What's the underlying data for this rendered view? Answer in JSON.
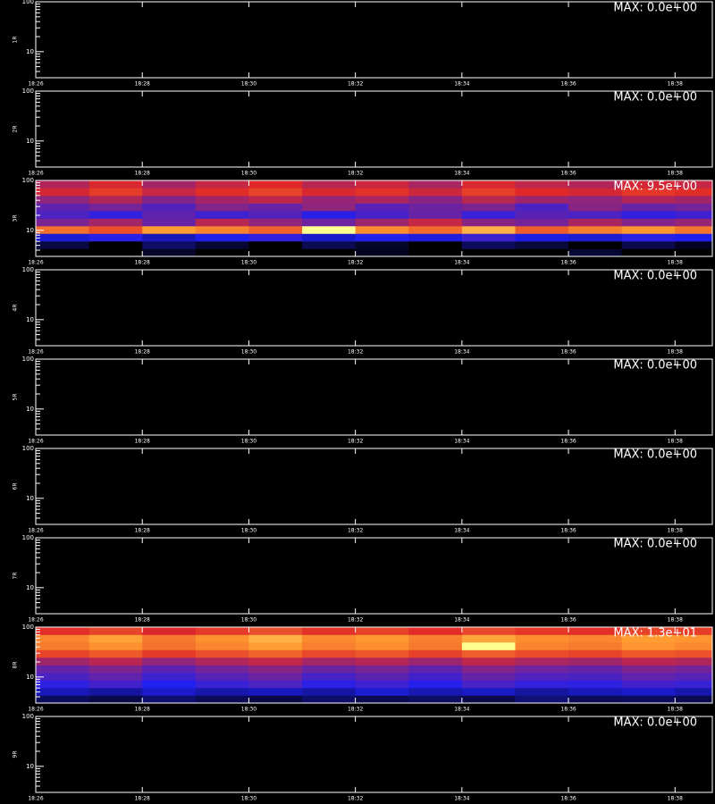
{
  "chart_data": {
    "type": "heatmap",
    "xlim": [
      1106,
      1118.7
    ],
    "xticks": [
      {
        "value": 1106,
        "label": "18:26"
      },
      {
        "value": 1108,
        "label": "18:28"
      },
      {
        "value": 1110,
        "label": "18:30"
      },
      {
        "value": 1112,
        "label": "18:32"
      },
      {
        "value": 1114,
        "label": "18:34"
      },
      {
        "value": 1116,
        "label": "18:36"
      },
      {
        "value": 1118,
        "label": "18:38"
      }
    ],
    "ylim": [
      3,
      100
    ],
    "log_y": true,
    "yticks": [
      10,
      100
    ],
    "yminorticks": [
      3,
      4,
      5,
      6,
      7,
      8,
      9,
      20,
      30,
      40,
      50,
      60,
      70,
      80,
      90
    ],
    "xbins": [
      1106,
      1107,
      1108,
      1109,
      1110,
      1111,
      1112,
      1113,
      1114,
      1115,
      1116,
      1117,
      1118,
      1118.7
    ],
    "ybins": [
      3,
      4.26,
      6.05,
      8.6,
      12.2,
      17.3,
      24.6,
      34.9,
      49.6,
      70.4,
      100
    ],
    "colorscale": [
      [
        0,
        "#000000"
      ],
      [
        0.3,
        "#2020f0"
      ],
      [
        0.6,
        "#e02828"
      ],
      [
        0.85,
        "#ff9a30"
      ],
      [
        1,
        "#ffff90"
      ]
    ],
    "panels": [
      {
        "ylabel": "1R",
        "annotation": "MAX: 0.0e+00",
        "zmax": 0,
        "z": null
      },
      {
        "ylabel": "2R",
        "annotation": "MAX: 0.0e+00",
        "zmax": 0,
        "z": null
      },
      {
        "ylabel": "3R",
        "annotation": "MAX: 9.5e+00",
        "zmax": 9.5,
        "z": [
          [
            0,
            0,
            0.5,
            0,
            0,
            0,
            0.4,
            0,
            0,
            0,
            0.6,
            0,
            0
          ],
          [
            0.8,
            0,
            1.2,
            0.6,
            0,
            1,
            0.5,
            0,
            1.1,
            0.7,
            0,
            0.9,
            0.4
          ],
          [
            2.5,
            3,
            2.2,
            2.8,
            3.1,
            2.4,
            2.9,
            2.6,
            3.3,
            2.7,
            2.5,
            3,
            2.8
          ],
          [
            7.2,
            6.5,
            8.1,
            7.6,
            6.9,
            9.5,
            7.8,
            7.1,
            8.4,
            6.8,
            7.5,
            8,
            7.3
          ],
          [
            4.2,
            4.8,
            3.9,
            5.1,
            4.5,
            4,
            4.7,
            5.3,
            4.4,
            4.1,
            4.9,
            4.3,
            4.6
          ],
          [
            3.5,
            3.1,
            3.8,
            3.3,
            3.6,
            3,
            3.4,
            3.9,
            3.2,
            3.7,
            3.5,
            3.1,
            3.3
          ],
          [
            3.8,
            4.1,
            3.6,
            4.3,
            3.9,
            4.5,
            3.7,
            4,
            4.2,
            3.5,
            4.4,
            3.9,
            4.1
          ],
          [
            4.5,
            5,
            4.3,
            4.8,
            5.2,
            4.6,
            4.9,
            4.4,
            5.1,
            4.7,
            4.5,
            5,
            4.8
          ],
          [
            5.5,
            6.1,
            5.3,
            5.8,
            6.3,
            5.6,
            5.9,
            5.4,
            6.2,
            5.7,
            5.5,
            6,
            5.8
          ],
          [
            5,
            5.6,
            4.8,
            5.3,
            5.7,
            5.1,
            5.4,
            4.9,
            5.6,
            5.2,
            5,
            5.5,
            5.3
          ]
        ]
      },
      {
        "ylabel": "4R",
        "annotation": "MAX: 0.0e+00",
        "zmax": 0,
        "z": null
      },
      {
        "ylabel": "5R",
        "annotation": "MAX: 0.0e+00",
        "zmax": 0,
        "z": null
      },
      {
        "ylabel": "6R",
        "annotation": "MAX: 0.0e+00",
        "zmax": 0,
        "z": null
      },
      {
        "ylabel": "7R",
        "annotation": "MAX: 0.0e+00",
        "zmax": 0,
        "z": null
      },
      {
        "ylabel": "8R",
        "annotation": "MAX: 1.3e+01",
        "zmax": 13,
        "z": [
          [
            1.5,
            1.2,
            1.8,
            1.4,
            1.1,
            1.7,
            1.3,
            1.6,
            1.2,
            1.9,
            1.4,
            1.5,
            1.3
          ],
          [
            3,
            2.6,
            3.3,
            2.8,
            3.1,
            2.7,
            3.4,
            2.9,
            3.2,
            2.6,
            3,
            3.3,
            2.8
          ],
          [
            4.2,
            4.6,
            3.9,
            4.4,
            4.8,
            4.1,
            4.5,
            4,
            4.7,
            4.3,
            4.2,
            4.6,
            4.4
          ],
          [
            4.8,
            5.2,
            4.5,
            5,
            5.4,
            4.7,
            5.1,
            4.6,
            5.3,
            4.9,
            4.8,
            5.2,
            5
          ],
          [
            5.3,
            5.8,
            5.1,
            5.6,
            6,
            5.4,
            5.7,
            5.2,
            5.9,
            5.5,
            5.3,
            5.8,
            5.6
          ],
          [
            6.5,
            7,
            6.2,
            6.8,
            7.2,
            6.6,
            6.9,
            6.4,
            7.1,
            6.7,
            6.5,
            7,
            6.8
          ],
          [
            8.6,
            9.2,
            8.3,
            8.9,
            9.5,
            8.7,
            9.1,
            8.5,
            9.3,
            8.8,
            8.6,
            9.2,
            9
          ],
          [
            10.2,
            10.8,
            9.9,
            10.5,
            11.1,
            10.3,
            10.7,
            10.1,
            13,
            10.4,
            10.2,
            10.9,
            10.6
          ],
          [
            10.5,
            11.2,
            10.1,
            10.8,
            11.5,
            10.6,
            11,
            10.3,
            11.3,
            10.7,
            10.5,
            11.1,
            10.9
          ],
          [
            8,
            8.6,
            7.7,
            8.3,
            8.9,
            8.1,
            8.5,
            7.9,
            8.7,
            8.2,
            8,
            8.6,
            8.4
          ]
        ]
      },
      {
        "ylabel": "9R",
        "annotation": "MAX: 0.0e+00",
        "zmax": 0,
        "z": null
      }
    ]
  }
}
